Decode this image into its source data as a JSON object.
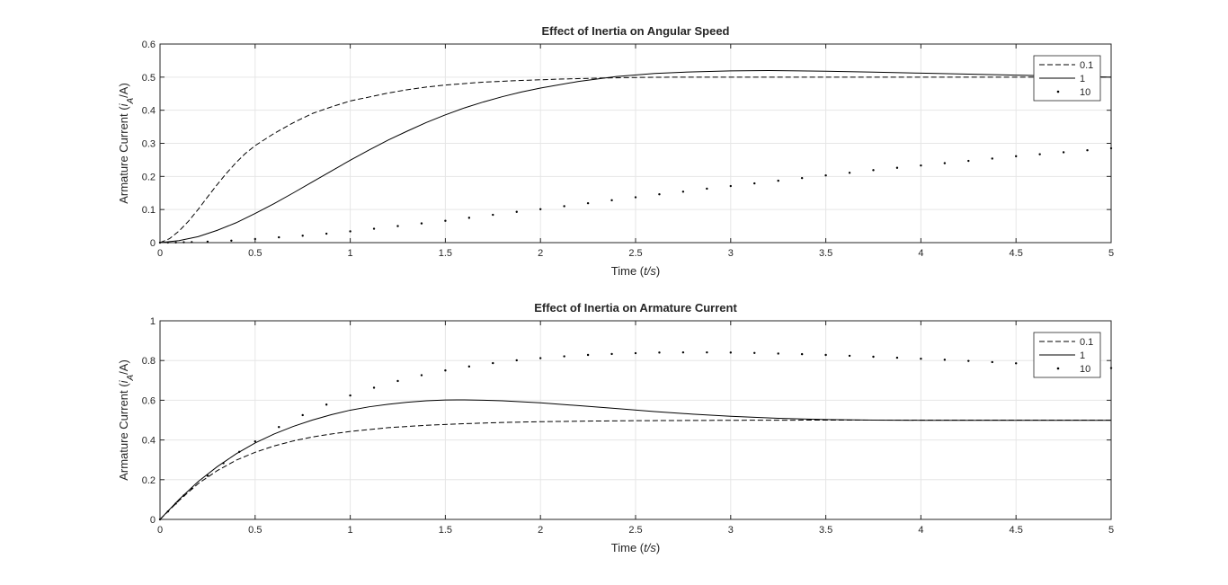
{
  "chart_data": [
    {
      "type": "line",
      "title": "Effect of Inertia on Angular Speed",
      "xlabel": "Time (t/s)",
      "ylabel": "Armature Current (i_A/A)",
      "xlabel_parts": [
        "Time (",
        "t/s",
        ")"
      ],
      "ylabel_parts": [
        "Armature Current (",
        "i",
        "A",
        "/A)"
      ],
      "xlim": [
        0,
        5
      ],
      "ylim": [
        0,
        0.6
      ],
      "xticks": [
        "0",
        "0.5",
        "1",
        "1.5",
        "2",
        "2.5",
        "3",
        "3.5",
        "4",
        "4.5",
        "5"
      ],
      "yticks": [
        "0",
        "0.1",
        "0.2",
        "0.3",
        "0.4",
        "0.5",
        "0.6"
      ],
      "grid": true,
      "legend_position": "top-right",
      "series": [
        {
          "name": "0.1",
          "style": "dashed",
          "x": [
            0,
            0.05,
            0.1,
            0.15,
            0.2,
            0.25,
            0.3,
            0.35,
            0.4,
            0.45,
            0.5,
            0.6,
            0.7,
            0.8,
            0.9,
            1.0,
            1.1,
            1.2,
            1.3,
            1.4,
            1.5,
            1.7,
            1.9,
            2.1,
            2.3,
            2.5,
            2.75,
            3.0,
            3.5,
            4.0,
            4.5,
            5.0
          ],
          "y": [
            0,
            0.012,
            0.035,
            0.065,
            0.1,
            0.138,
            0.175,
            0.21,
            0.242,
            0.27,
            0.293,
            0.33,
            0.362,
            0.39,
            0.41,
            0.428,
            0.44,
            0.452,
            0.462,
            0.47,
            0.476,
            0.485,
            0.49,
            0.494,
            0.497,
            0.499,
            0.5,
            0.5,
            0.5,
            0.5,
            0.5,
            0.5
          ]
        },
        {
          "name": "1",
          "style": "solid",
          "x": [
            0,
            0.1,
            0.2,
            0.3,
            0.4,
            0.5,
            0.6,
            0.7,
            0.8,
            0.9,
            1.0,
            1.1,
            1.2,
            1.3,
            1.4,
            1.5,
            1.6,
            1.7,
            1.8,
            1.9,
            2.0,
            2.2,
            2.4,
            2.6,
            2.8,
            3.0,
            3.2,
            3.5,
            3.75,
            4.0,
            4.25,
            4.5,
            4.75,
            5.0
          ],
          "y": [
            0,
            0.006,
            0.018,
            0.037,
            0.06,
            0.088,
            0.118,
            0.15,
            0.183,
            0.216,
            0.249,
            0.28,
            0.31,
            0.337,
            0.363,
            0.386,
            0.407,
            0.425,
            0.441,
            0.455,
            0.467,
            0.487,
            0.502,
            0.511,
            0.516,
            0.519,
            0.52,
            0.518,
            0.515,
            0.512,
            0.509,
            0.506,
            0.503,
            0.5
          ]
        },
        {
          "name": "10",
          "style": "dotted",
          "x": [
            0,
            0.0417,
            0.0833,
            0.125,
            0.1667,
            0.25,
            0.375,
            0.5,
            0.625,
            0.75,
            0.875,
            1.0,
            1.125,
            1.25,
            1.375,
            1.5,
            1.625,
            1.75,
            1.875,
            2.0,
            2.125,
            2.25,
            2.375,
            2.5,
            2.625,
            2.75,
            2.875,
            3.0,
            3.125,
            3.25,
            3.375,
            3.5,
            3.625,
            3.75,
            3.875,
            4.0,
            4.125,
            4.25,
            4.375,
            4.5,
            4.625,
            4.75,
            4.875,
            5.0
          ],
          "y": [
            0,
            0.0002,
            0.0005,
            0.001,
            0.0015,
            0.003,
            0.006,
            0.011,
            0.016,
            0.021,
            0.027,
            0.034,
            0.042,
            0.05,
            0.058,
            0.066,
            0.075,
            0.084,
            0.093,
            0.101,
            0.11,
            0.119,
            0.128,
            0.137,
            0.146,
            0.154,
            0.163,
            0.171,
            0.179,
            0.187,
            0.195,
            0.203,
            0.211,
            0.219,
            0.226,
            0.233,
            0.24,
            0.247,
            0.254,
            0.261,
            0.267,
            0.273,
            0.279,
            0.285
          ]
        }
      ]
    },
    {
      "type": "line",
      "title": "Effect of Inertia on Armature Current",
      "xlabel": "Time (t/s)",
      "ylabel": "Armature Current (i_A/A)",
      "xlabel_parts": [
        "Time (",
        "t/s",
        ")"
      ],
      "ylabel_parts": [
        "Armature Current (",
        "i",
        "A",
        "/A)"
      ],
      "xlim": [
        0,
        5
      ],
      "ylim": [
        0,
        1
      ],
      "xticks": [
        "0",
        "0.5",
        "1",
        "1.5",
        "2",
        "2.5",
        "3",
        "3.5",
        "4",
        "4.5",
        "5"
      ],
      "yticks": [
        "0",
        "0.2",
        "0.4",
        "0.6",
        "0.8",
        "1"
      ],
      "grid": true,
      "legend_position": "top-right",
      "series": [
        {
          "name": "0.1",
          "style": "dashed",
          "x": [
            0,
            0.1,
            0.2,
            0.3,
            0.4,
            0.5,
            0.6,
            0.7,
            0.8,
            0.9,
            1.0,
            1.2,
            1.4,
            1.6,
            1.8,
            2.0,
            2.25,
            2.5,
            3.0,
            3.5,
            4.0,
            4.5,
            5.0
          ],
          "y": [
            0,
            0.095,
            0.18,
            0.245,
            0.298,
            0.338,
            0.37,
            0.395,
            0.415,
            0.43,
            0.443,
            0.462,
            0.474,
            0.482,
            0.488,
            0.492,
            0.495,
            0.497,
            0.499,
            0.5,
            0.5,
            0.5,
            0.5
          ]
        },
        {
          "name": "1",
          "style": "solid",
          "x": [
            0,
            0.1,
            0.2,
            0.3,
            0.4,
            0.5,
            0.6,
            0.7,
            0.8,
            0.9,
            1.0,
            1.1,
            1.2,
            1.3,
            1.4,
            1.5,
            1.6,
            1.7,
            1.8,
            2.0,
            2.2,
            2.4,
            2.6,
            2.8,
            3.0,
            3.25,
            3.5,
            3.75,
            4.0,
            4.25,
            4.5,
            4.75,
            5.0
          ],
          "y": [
            0,
            0.1,
            0.19,
            0.265,
            0.33,
            0.385,
            0.43,
            0.468,
            0.5,
            0.527,
            0.55,
            0.567,
            0.58,
            0.59,
            0.597,
            0.601,
            0.602,
            0.6,
            0.597,
            0.587,
            0.573,
            0.558,
            0.543,
            0.53,
            0.519,
            0.509,
            0.503,
            0.5,
            0.499,
            0.499,
            0.499,
            0.499,
            0.499
          ]
        },
        {
          "name": "10",
          "style": "dotted",
          "x": [
            0,
            0.0417,
            0.0833,
            0.125,
            0.1667,
            0.25,
            0.3333,
            0.4167,
            0.5,
            0.625,
            0.75,
            0.875,
            1.0,
            1.125,
            1.25,
            1.375,
            1.5,
            1.625,
            1.75,
            1.875,
            2.0,
            2.125,
            2.25,
            2.375,
            2.5,
            2.625,
            2.75,
            2.875,
            3.0,
            3.125,
            3.25,
            3.375,
            3.5,
            3.625,
            3.75,
            3.875,
            4.0,
            4.125,
            4.25,
            4.375,
            4.5,
            4.625,
            4.75,
            4.875,
            5.0
          ],
          "y": [
            0,
            0.04,
            0.08,
            0.12,
            0.155,
            0.22,
            0.283,
            0.34,
            0.393,
            0.465,
            0.525,
            0.578,
            0.624,
            0.663,
            0.697,
            0.726,
            0.75,
            0.77,
            0.787,
            0.801,
            0.812,
            0.821,
            0.828,
            0.833,
            0.837,
            0.84,
            0.841,
            0.841,
            0.84,
            0.838,
            0.835,
            0.832,
            0.828,
            0.824,
            0.819,
            0.814,
            0.809,
            0.804,
            0.798,
            0.792,
            0.786,
            0.78,
            0.774,
            0.768,
            0.762
          ]
        }
      ]
    }
  ]
}
